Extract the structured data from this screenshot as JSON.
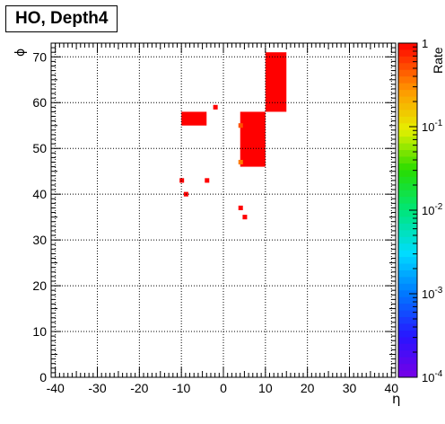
{
  "chart_data": {
    "type": "heatmap",
    "title": "HO, Depth4",
    "xlabel": "η",
    "ylabel": "ϕ",
    "zlabel": "Rate",
    "xlim": [
      -41,
      41
    ],
    "ylim": [
      0,
      73
    ],
    "x_ticks": [
      -40,
      -30,
      -20,
      -10,
      0,
      10,
      20,
      30,
      40
    ],
    "y_ticks": [
      0,
      10,
      20,
      30,
      40,
      50,
      60,
      70
    ],
    "z_scale": "log",
    "z_range": [
      0.0001,
      1
    ],
    "z_ticks": [
      {
        "base": "10",
        "exp": "-4"
      },
      {
        "base": "10",
        "exp": "-3"
      },
      {
        "base": "10",
        "exp": "-2"
      },
      {
        "base": "10",
        "exp": "-1"
      },
      {
        "base": "1",
        "exp": ""
      }
    ],
    "grid": true,
    "colorbar": "right",
    "regions": [
      {
        "eta_min": 10,
        "eta_max": 15,
        "phi_min": 58,
        "phi_max": 71,
        "rate": 1.0
      },
      {
        "eta_min": 4,
        "eta_max": 10,
        "phi_min": 46,
        "phi_max": 58,
        "rate": 1.0
      },
      {
        "eta_min": -10,
        "eta_max": -4,
        "phi_min": 55,
        "phi_max": 58,
        "rate": 1.0
      }
    ],
    "cells": [
      {
        "eta": -2,
        "phi": 59,
        "rate": 1.0
      },
      {
        "eta": -10,
        "phi": 43,
        "rate": 1.0
      },
      {
        "eta": -4,
        "phi": 43,
        "rate": 1.0
      },
      {
        "eta": -9,
        "phi": 40,
        "rate": 1.0
      },
      {
        "eta": 4,
        "phi": 37,
        "rate": 1.0
      },
      {
        "eta": 5,
        "phi": 35,
        "rate": 1.0
      },
      {
        "eta": 4,
        "phi": 47,
        "rate": 0.35
      },
      {
        "eta": 4,
        "phi": 55,
        "rate": 0.5
      }
    ]
  }
}
